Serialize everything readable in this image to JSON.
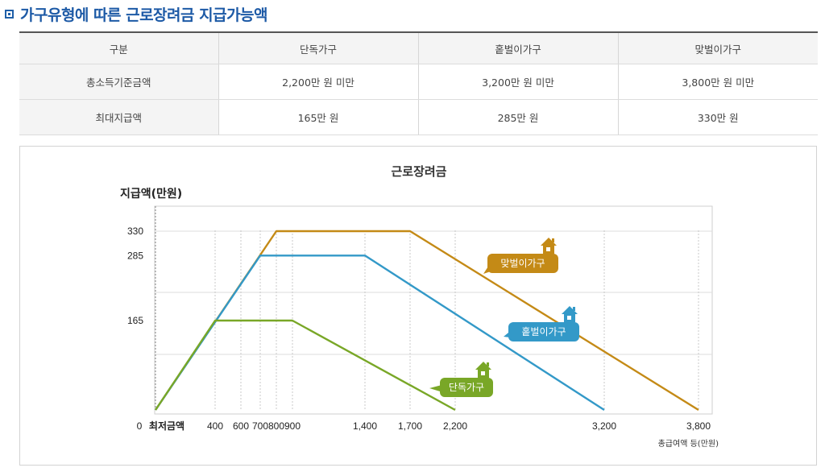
{
  "section_title": "가구유형에 따른 근로장려금 지급가능액",
  "table": {
    "headers": [
      "구분",
      "단독가구",
      "홑벌이가구",
      "맞벌이가구"
    ],
    "rows": [
      {
        "label": "총소득기준금액",
        "values": [
          "2,200만 원 미만",
          "3,200만 원 미만",
          "3,800만 원 미만"
        ]
      },
      {
        "label": "최대지급액",
        "values": [
          "165만 원",
          "285만 원",
          "330만 원"
        ]
      }
    ]
  },
  "chart_data": {
    "type": "line",
    "title": "근로장려금",
    "ylabel": "지급액(만원)",
    "xlabel": "총급여액 등(만원)",
    "x_ticks": [
      0,
      400,
      600,
      700,
      800,
      900,
      1400,
      1700,
      2200,
      3200,
      3800
    ],
    "x_tick_labels": [
      "400",
      "600",
      "700",
      "800",
      "900",
      "1,400",
      "1,700",
      "2,200",
      "3,200",
      "3,800"
    ],
    "x_origin_labels": [
      "0",
      "최저금액"
    ],
    "y_ticks": [
      165,
      285,
      330
    ],
    "y_tick_labels": [
      "165",
      "285",
      "330"
    ],
    "ylim": [
      0,
      380
    ],
    "grid": true,
    "series": [
      {
        "name": "맞벌이가구",
        "color": "#c48a16",
        "x": [
          0,
          800,
          1700,
          3800
        ],
        "y": [
          0,
          330,
          330,
          0
        ]
      },
      {
        "name": "홑벌이가구",
        "color": "#3399c8",
        "x": [
          0,
          700,
          1400,
          3200
        ],
        "y": [
          0,
          285,
          285,
          0
        ]
      },
      {
        "name": "단독가구",
        "color": "#79a727",
        "x": [
          0,
          400,
          900,
          2200
        ],
        "y": [
          0,
          165,
          165,
          0
        ]
      }
    ]
  }
}
